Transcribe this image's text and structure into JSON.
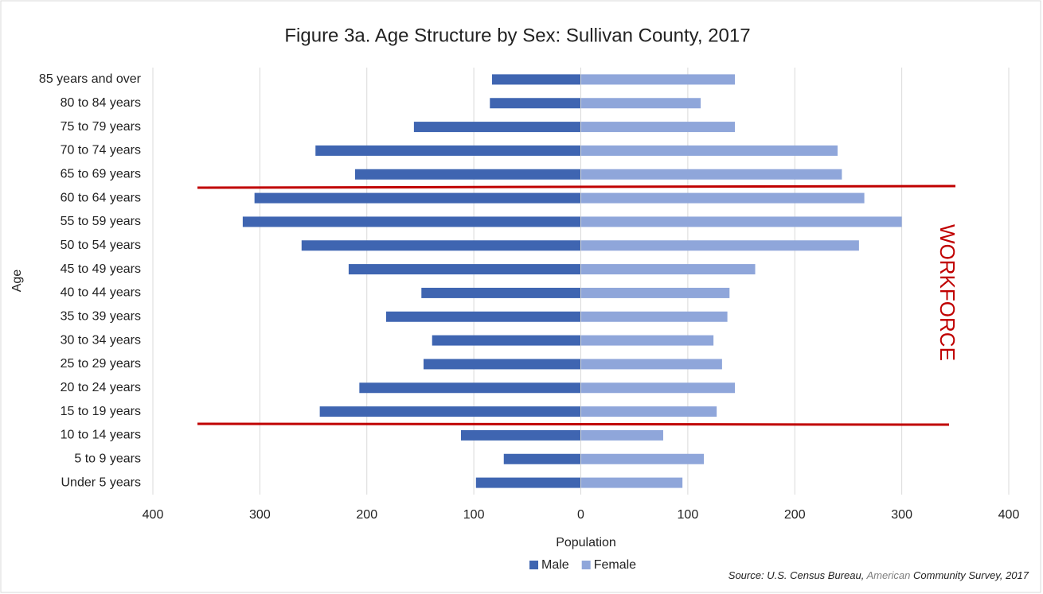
{
  "chart_data": {
    "type": "pyramid",
    "title": "Figure 3a. Age Structure by Sex: Sullivan County, 2017",
    "xlabel": "Population",
    "ylabel": "Age",
    "annotation": "WORKFORCE",
    "source": [
      "Source: U.S. Census Bureau,",
      "American",
      "Community Survey, 2017"
    ],
    "categories": [
      "85 years and over",
      "80 to 84 years",
      "75 to 79 years",
      "70 to 74 years",
      "65 to 69 years",
      "60 to 64 years",
      "55 to 59 years",
      "50 to 54 years",
      "45 to 49 years",
      "40 to 44 years",
      "35 to 39 years",
      "30 to 34 years",
      "25 to 29 years",
      "20 to 24 years",
      "15 to 19 years",
      "10 to 14 years",
      "5 to 9 years",
      "Under 5 years"
    ],
    "series": [
      {
        "name": "Male",
        "color": "#3f65b1",
        "values": [
          -83,
          -85,
          -156,
          -248,
          -211,
          -305,
          -316,
          -261,
          -217,
          -149,
          -182,
          -139,
          -147,
          -207,
          -244,
          -112,
          -72,
          -98
        ]
      },
      {
        "name": "Female",
        "color": "#8fa6da",
        "values": [
          144,
          112,
          144,
          240,
          244,
          265,
          300,
          260,
          163,
          139,
          137,
          124,
          132,
          144,
          127,
          77,
          115,
          95
        ]
      }
    ],
    "xlim": [
      -400,
      400
    ],
    "xticks": [
      {
        "value": -400,
        "label": "400"
      },
      {
        "value": -300,
        "label": "300"
      },
      {
        "value": -200,
        "label": "200"
      },
      {
        "value": -100,
        "label": "100"
      },
      0,
      100,
      200,
      300,
      400
    ],
    "grid": true,
    "legend": "bottom"
  }
}
